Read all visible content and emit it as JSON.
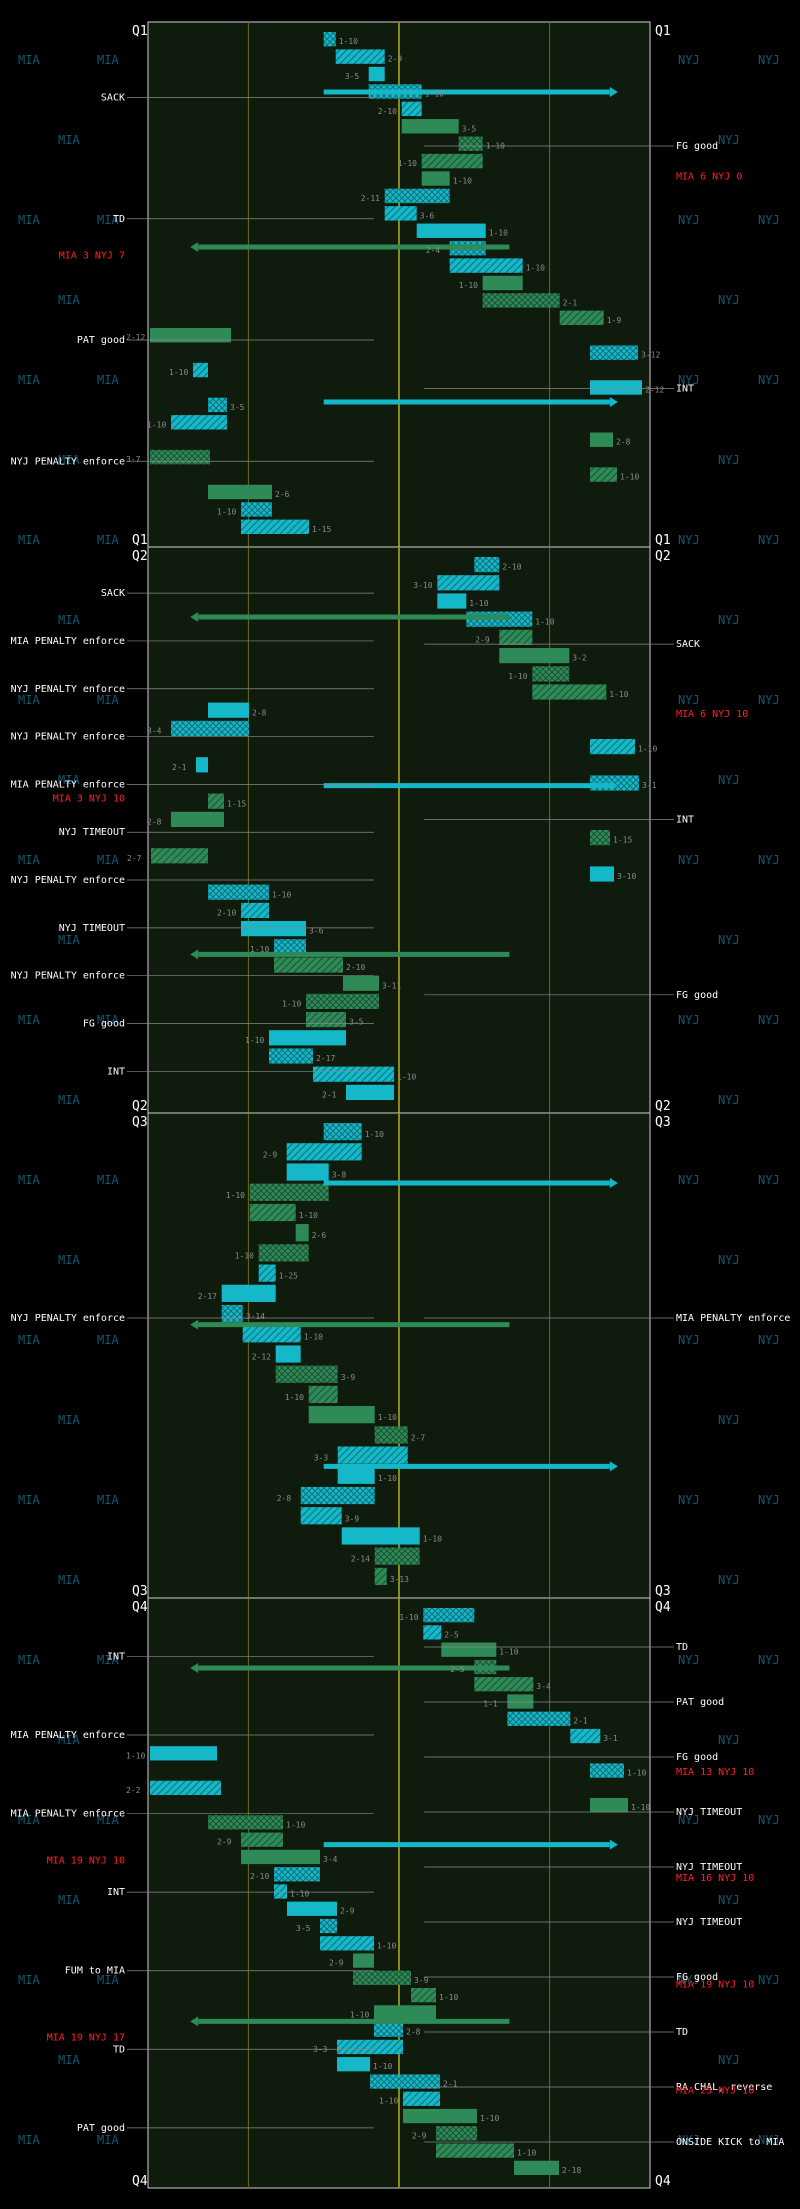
{
  "chart_data": {
    "type": "football drive chart",
    "team_left": "MIA",
    "team_right": "NYJ",
    "colors": {
      "field": "#0f1c0d",
      "mia_play": "#14b8c8",
      "nyj_play": "#2e8b57",
      "yard_line": "#6b6b10",
      "midfield": "#8b8b10",
      "annotation_line": "#888888",
      "score": "#ff2222"
    },
    "quarters": [
      {
        "label": "Q1",
        "down_distance": [
          "1-10",
          "2-9",
          "3-5",
          "1-10",
          "2-10",
          "3-5",
          "1-10",
          "1-10",
          "1-10",
          "2-11",
          "3-6",
          "1-10",
          "2-4",
          "1-10",
          "1-10",
          "2-1",
          "1-9",
          "2-12",
          "3-12",
          "1-10",
          "2-12",
          "3-5",
          "1-10",
          "2-8",
          "3-7",
          "1-10",
          "2-6",
          "1-10",
          "1-15"
        ],
        "annotations_left": [
          "SACK",
          "TD",
          "PAT good",
          "NYJ PENALTY enforce"
        ],
        "annotations_right": [
          "FG good",
          "INT"
        ],
        "scores_left": [
          "MIA 3 NYJ 7"
        ],
        "scores_right": [
          "MIA 6 NYJ 0"
        ]
      },
      {
        "label": "Q2",
        "down_distance": [
          "2-10",
          "3-10",
          "1-10",
          "1-10",
          "2-9",
          "3-2",
          "1-10",
          "1-10",
          "2-8",
          "3-4",
          "1-10",
          "2-1",
          "3-1",
          "1-15",
          "2-8",
          "1-15",
          "2-7",
          "3-10",
          "1-10",
          "2-10",
          "3-6",
          "1-10",
          "2-10",
          "3-11",
          "1-10",
          "3-5",
          "1-10",
          "2-17",
          "1-10",
          "2-1"
        ],
        "annotations_left": [
          "SACK",
          "MIA PENALTY enforce",
          "NYJ PENALTY enforce",
          "NYJ PENALTY enforce",
          "MIA PENALTY enforce",
          "NYJ TIMEOUT",
          "NYJ PENALTY enforce",
          "NYJ TIMEOUT",
          "NYJ PENALTY enforce",
          "FG good",
          "INT"
        ],
        "annotations_right": [
          "SACK",
          "INT",
          "FG good"
        ],
        "scores_left": [
          "MIA 3 NYJ 10"
        ],
        "scores_right": [
          "MIA 6 NYJ 10"
        ]
      },
      {
        "label": "Q3",
        "down_distance": [
          "1-10",
          "2-9",
          "3-8",
          "1-10",
          "1-10",
          "2-6",
          "1-10",
          "1-25",
          "2-17",
          "3-14",
          "1-10",
          "2-12",
          "3-9",
          "1-10",
          "1-10",
          "2-7",
          "3-3",
          "1-10",
          "2-8",
          "3-9",
          "1-10",
          "2-14",
          "3-13"
        ],
        "annotations_left": [
          "NYJ PENALTY enforce"
        ],
        "annotations_right": [
          "MIA PENALTY enforce"
        ],
        "scores_left": [],
        "scores_right": []
      },
      {
        "label": "Q4",
        "down_distance": [
          "1-10",
          "2-5",
          "1-10",
          "2-5",
          "3-4",
          "1-1",
          "2-1",
          "3-1",
          "1-10",
          "1-10",
          "2-2",
          "1-10",
          "1-10",
          "2-9",
          "3-4",
          "2-10",
          "1-10",
          "2-9",
          "3-5",
          "1-10",
          "2-9",
          "3-9",
          "1-10",
          "1-10",
          "2-8",
          "3-3",
          "1-10",
          "2-1",
          "1-10",
          "1-10",
          "2-9",
          "1-10",
          "2-18"
        ],
        "annotations_left": [
          "INT",
          "MIA PENALTY enforce",
          "MIA PENALTY enforce",
          "INT",
          "FUM to MIA",
          "TD",
          "PAT good"
        ],
        "annotations_right": [
          "TD",
          "PAT good",
          "FG good",
          "NYJ TIMEOUT",
          "NYJ TIMEOUT",
          "NYJ TIMEOUT",
          "FG good",
          "TD",
          "RA CHAL, reverse",
          "ONSIDE KICK to MIA"
        ],
        "scores_left": [
          "MIA 19 NYJ 10",
          "MIA 19 NYJ 17"
        ],
        "scores_right": [
          "MIA 13 NYJ 10",
          "MIA 16 NYJ 10",
          "MIA 19 NYJ 10",
          "MIA 25 NYJ 10"
        ]
      }
    ]
  }
}
